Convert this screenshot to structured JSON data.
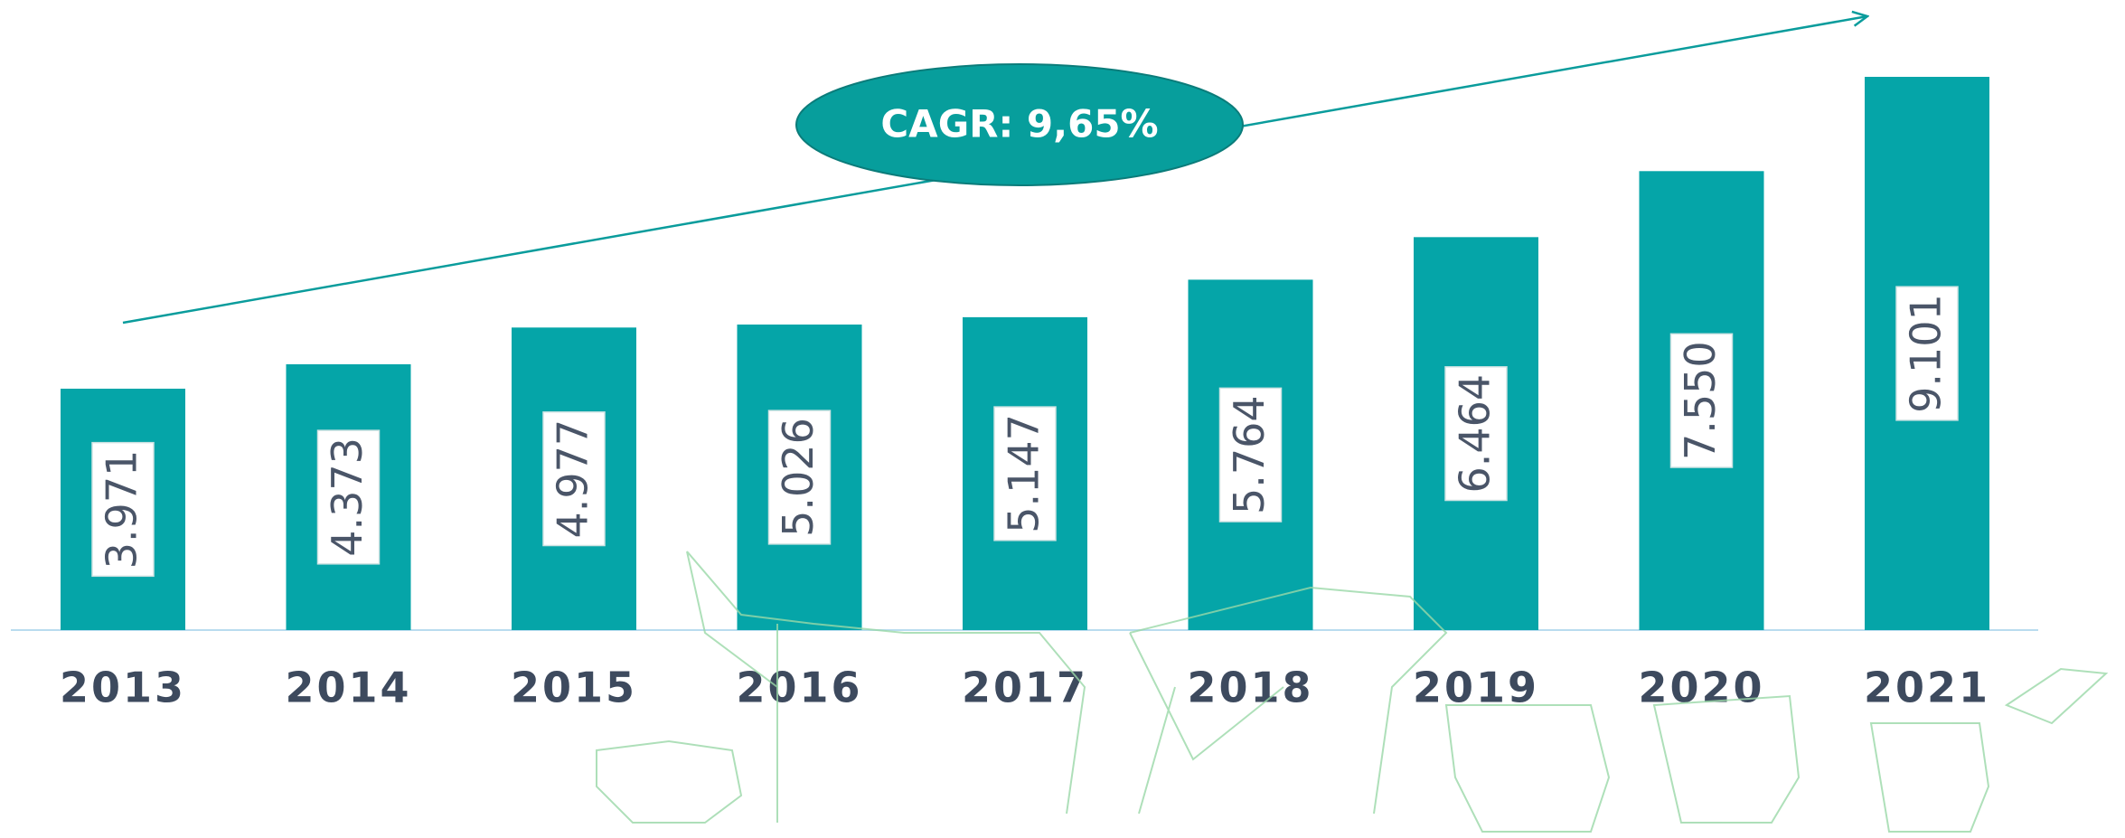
{
  "chart_data": {
    "type": "bar",
    "annotation": "CAGR: 9,65%",
    "categories": [
      "2013",
      "2014",
      "2015",
      "2016",
      "2017",
      "2018",
      "2019",
      "2020",
      "2021"
    ],
    "values": [
      3971,
      4373,
      4977,
      5026,
      5147,
      5764,
      6464,
      7550,
      9101
    ],
    "value_labels": [
      "3.971",
      "4.373",
      "4.977",
      "5.026",
      "5.147",
      "5.764",
      "6.464",
      "7.550",
      "9.101"
    ],
    "color": "#05a5a8"
  }
}
